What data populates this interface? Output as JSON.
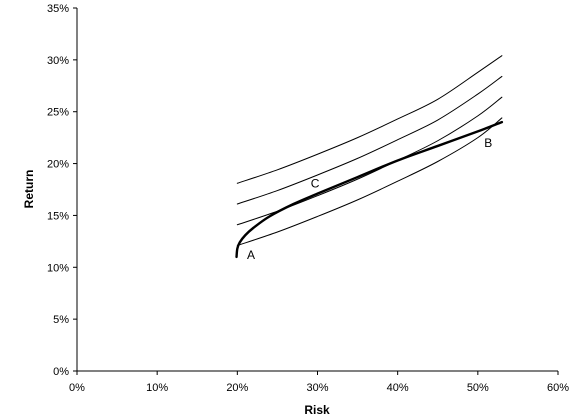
{
  "chart_data": {
    "type": "line",
    "title": "",
    "xlabel": "Risk",
    "ylabel": "Return",
    "xlim": [
      0,
      60
    ],
    "ylim": [
      0,
      35
    ],
    "x_ticks": [
      "0%",
      "10%",
      "20%",
      "30%",
      "40%",
      "50%",
      "60%"
    ],
    "y_ticks": [
      "0%",
      "5%",
      "10%",
      "15%",
      "20%",
      "25%",
      "30%",
      "35%"
    ],
    "grid": false,
    "legend": "none",
    "series": [
      {
        "style": "thin",
        "x": [
          20,
          25,
          30,
          35,
          40,
          45,
          50,
          53
        ],
        "y": [
          18.1,
          19.4,
          20.9,
          22.5,
          24.3,
          26.2,
          28.8,
          30.4
        ]
      },
      {
        "style": "thin",
        "x": [
          20,
          25,
          30,
          35,
          40,
          45,
          50,
          53
        ],
        "y": [
          16.1,
          17.4,
          18.9,
          20.5,
          22.3,
          24.2,
          26.7,
          28.4
        ]
      },
      {
        "style": "thin",
        "x": [
          20,
          25,
          30,
          35,
          40,
          45,
          50,
          53
        ],
        "y": [
          14.1,
          15.4,
          16.9,
          18.5,
          20.3,
          22.2,
          24.6,
          26.4
        ]
      },
      {
        "style": "thin",
        "x": [
          20,
          25,
          30,
          35,
          40,
          45,
          50,
          53
        ],
        "y": [
          12.1,
          13.4,
          14.9,
          16.5,
          18.3,
          20.2,
          22.5,
          24.4
        ]
      },
      {
        "style": "thick",
        "x": [
          19.9,
          20.0,
          20.3,
          21.0,
          22.0,
          24.0,
          27.0,
          30.0,
          35.0,
          40.0,
          45.0,
          50.0,
          53.0
        ],
        "y": [
          11.0,
          11.8,
          12.4,
          13.1,
          13.8,
          14.9,
          16.1,
          17.1,
          18.7,
          20.3,
          21.7,
          23.1,
          24.0
        ]
      }
    ],
    "annotations": [
      {
        "text": "A",
        "x": 21.7,
        "y": 10.8
      },
      {
        "text": "B",
        "x": 51.3,
        "y": 21.6
      },
      {
        "text": "C",
        "x": 29.7,
        "y": 17.7
      }
    ],
    "colors": {
      "line": "#000000",
      "axis": "#000000"
    }
  }
}
